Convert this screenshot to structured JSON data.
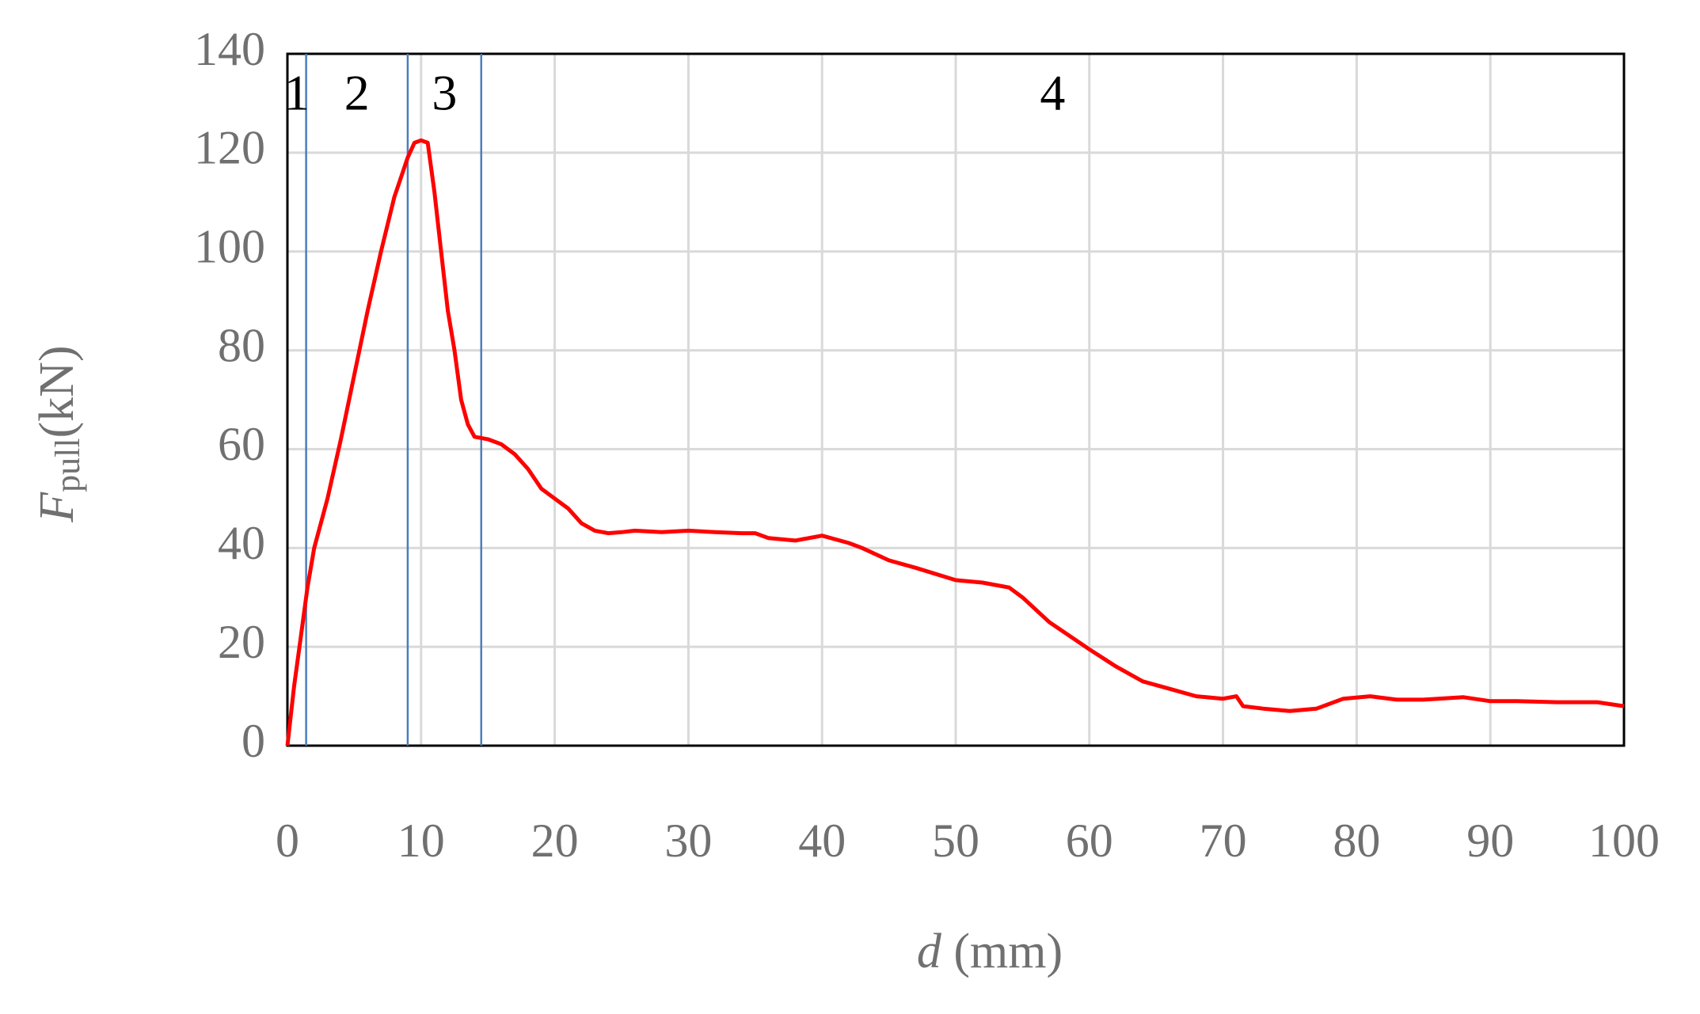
{
  "chart_data": {
    "type": "line",
    "xlabel": {
      "symbol": "d",
      "unit": "(mm)"
    },
    "ylabel": {
      "symbol": "F",
      "subscript": "pull",
      "unit": "(kN)"
    },
    "xlim": [
      0,
      100
    ],
    "xticks": [
      0,
      10,
      20,
      30,
      40,
      50,
      60,
      70,
      80,
      90,
      100
    ],
    "ylim": [
      0,
      140
    ],
    "yticks": [
      0,
      20,
      40,
      60,
      80,
      100,
      120,
      140
    ],
    "grid": true,
    "boundaries": [
      1.4,
      9,
      14.5
    ],
    "boundary_color": "#4a7ebb",
    "regions": [
      "1",
      "2",
      "3",
      "4"
    ],
    "series": [
      {
        "name": null,
        "color": "#ff0000",
        "x": [
          0,
          0.5,
          1,
          1.5,
          2,
          3,
          4,
          5,
          6,
          7,
          8,
          9,
          9.5,
          10,
          10.5,
          11,
          11.5,
          12,
          12.5,
          13,
          13.5,
          14,
          15,
          16,
          17,
          18,
          19,
          20,
          21,
          22,
          23,
          24,
          25,
          26,
          28,
          30,
          32,
          34,
          35,
          36,
          38,
          40,
          42,
          43,
          45,
          47,
          50,
          52,
          54,
          55,
          57,
          60,
          62,
          64,
          66,
          68,
          70,
          71,
          71.5,
          73,
          75,
          77,
          79,
          81,
          83,
          85,
          88,
          90,
          92,
          95,
          98,
          100
        ],
        "values": [
          0,
          12,
          22,
          32,
          40,
          50,
          62,
          75,
          88,
          100,
          111,
          119,
          122,
          122.5,
          122,
          112,
          100,
          88,
          80,
          70,
          65,
          62.5,
          62,
          61,
          59,
          56,
          52,
          50,
          48,
          45,
          43.5,
          43,
          43.2,
          43.5,
          43.2,
          43.5,
          43.2,
          43,
          43,
          42,
          41.5,
          42.5,
          41,
          40,
          37.5,
          36,
          33.5,
          33,
          32,
          30,
          25,
          19.5,
          16,
          13,
          11.5,
          10,
          9.5,
          10,
          8,
          7.5,
          7,
          7.5,
          9.5,
          10,
          9.3,
          9.3,
          9.8,
          9,
          9,
          8.8,
          8.8,
          8
        ]
      }
    ]
  }
}
